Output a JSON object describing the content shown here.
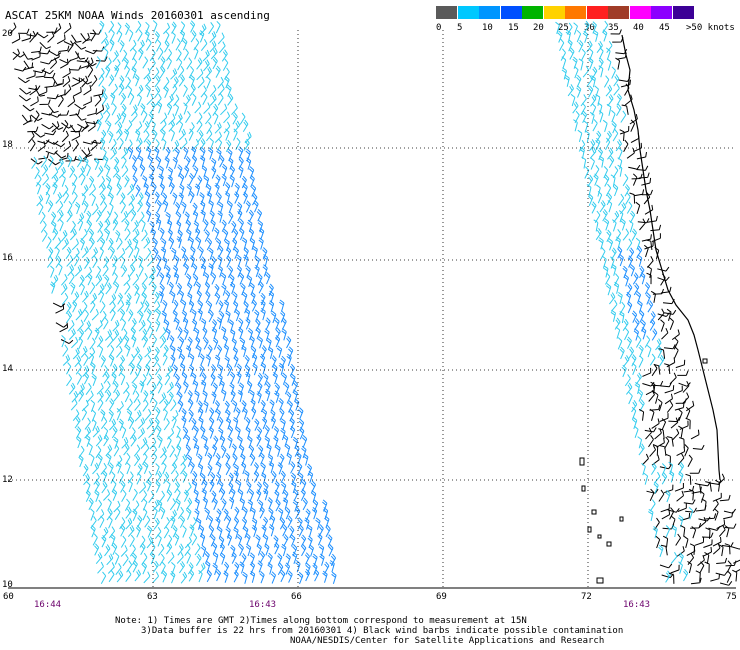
{
  "title": "ASCAT 25KM NOAA Winds 20160301 ascending",
  "colorbar": {
    "labels": [
      "0",
      "5",
      "10",
      "15",
      "20",
      "25",
      "30",
      "35",
      "40",
      "45",
      ">50 knots"
    ],
    "colors": [
      "#5a5a5a",
      "#00c8ff",
      "#0096ff",
      "#0050ff",
      "#00b400",
      "#ffd200",
      "#ff7800",
      "#ff2020",
      "#a03c28",
      "#ff00ff",
      "#8c00ff",
      "#3c0096"
    ]
  },
  "map": {
    "lat_labels": [
      "20",
      "18",
      "16",
      "14",
      "12",
      "10"
    ],
    "lon_labels": [
      "60",
      "63",
      "66",
      "69",
      "72",
      "75"
    ],
    "time_labels": [
      "16:44",
      "16:43",
      "16:43"
    ],
    "barb_colors": {
      "contaminated": "#000000",
      "light": "#33ccee",
      "medium": "#1e90ff"
    }
  },
  "notes": [
    "Note: 1) Times are GMT 2)Times along bottom correspond to measurement at 15N",
    "3)Data buffer is 22 hrs from 20160301 4) Black wind barbs indicate possible contamination",
    "NOAA/NESDIS/Center for Satellite Applications and Research"
  ]
}
